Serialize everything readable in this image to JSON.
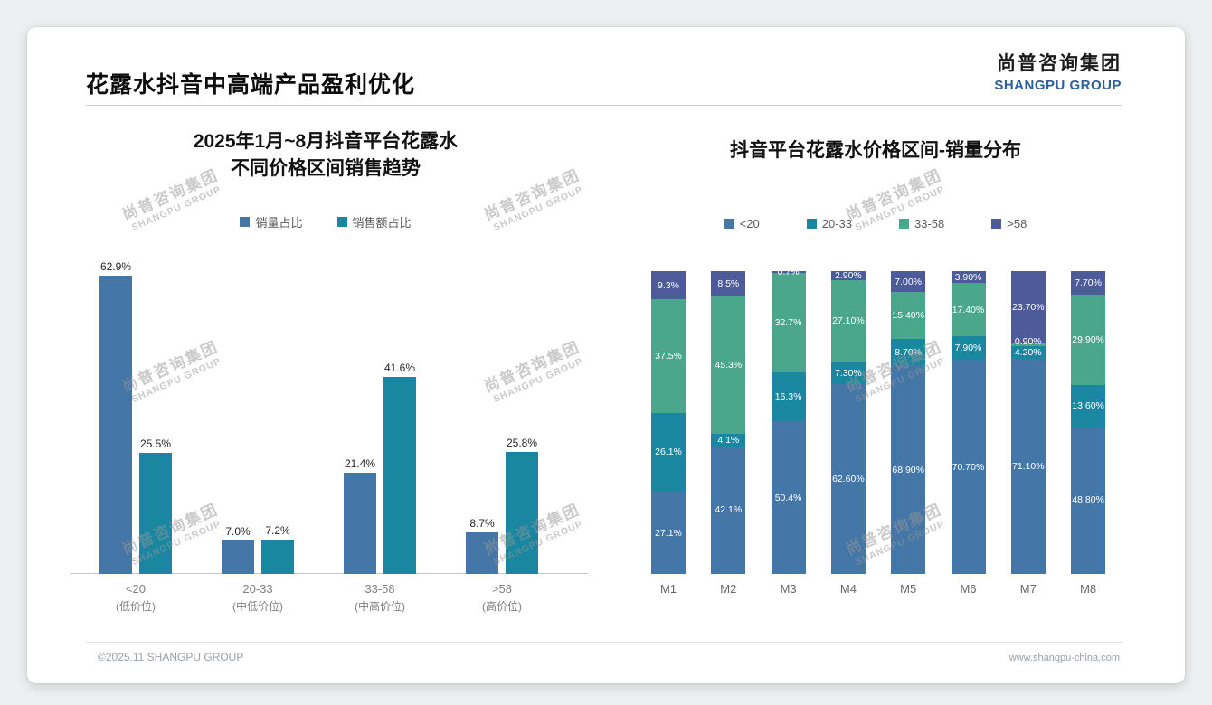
{
  "page": {
    "title": "花露水抖音中高端产品盈利优化",
    "logo": {
      "cn": "尚普咨询集团",
      "en": "SHANGPU GROUP"
    },
    "footer": {
      "left": "©2025.11 SHANGPU GROUP",
      "right": "www.shangpu-china.com"
    },
    "watermark": {
      "cn": "尚普咨询集团",
      "en": "SHANGPU GROUP"
    }
  },
  "colors": {
    "blue": "#4576a8",
    "teal": "#1a87a0",
    "green": "#4ba78c",
    "purple": "#4d5b9b"
  },
  "chart_data": [
    {
      "type": "bar",
      "title": "2025年1月~8月抖音平台花露水不同价格区间销售趋势",
      "title_lines": [
        "2025年1月~8月抖音平台花露水",
        "不同价格区间销售趋势"
      ],
      "categories": [
        "<20",
        "20-33",
        "33-58",
        ">58"
      ],
      "category_sublabels": [
        "(低价位)",
        "(中低价位)",
        "(中高价位)",
        "(高价位)"
      ],
      "series": [
        {
          "name": "销量占比",
          "color_key": "blue",
          "values": [
            62.9,
            7.0,
            21.4,
            8.7
          ],
          "labels": [
            "62.9%",
            "7.0%",
            "21.4%",
            "8.7%"
          ]
        },
        {
          "name": "销售额占比",
          "color_key": "teal",
          "values": [
            25.5,
            7.2,
            41.6,
            25.8
          ],
          "labels": [
            "25.5%",
            "7.2%",
            "41.6%",
            "25.8%"
          ]
        }
      ],
      "ylabel": "",
      "xlabel": "",
      "ylim": [
        0,
        70
      ],
      "grid": false,
      "legend_position": "top"
    },
    {
      "type": "bar",
      "subtype": "stacked-100",
      "title": "抖音平台花露水价格区间-销量分布",
      "categories": [
        "M1",
        "M2",
        "M3",
        "M4",
        "M5",
        "M6",
        "M7",
        "M8"
      ],
      "series": [
        {
          "name": "<20",
          "color_key": "blue",
          "values": [
            27.1,
            42.1,
            50.4,
            62.6,
            68.9,
            70.7,
            71.1,
            48.8
          ],
          "labels": [
            "27.1%",
            "42.1%",
            "50.4%",
            "62.60%",
            "68.90%",
            "70.70%",
            "71.10%",
            "48.80%"
          ]
        },
        {
          "name": "20-33",
          "color_key": "teal",
          "values": [
            26.1,
            4.1,
            16.3,
            7.3,
            8.7,
            7.9,
            4.2,
            13.6
          ],
          "labels": [
            "26.1%",
            "4.1%",
            "16.3%",
            "7.30%",
            "8.70%",
            "7.90%",
            "4.20%",
            "13.60%"
          ]
        },
        {
          "name": "33-58",
          "color_key": "green",
          "values": [
            37.5,
            45.3,
            32.7,
            27.1,
            15.4,
            17.4,
            0.9,
            29.9
          ],
          "labels": [
            "37.5%",
            "45.3%",
            "32.7%",
            "27.10%",
            "15.40%",
            "17.40%",
            "0.90%",
            "29.90%"
          ]
        },
        {
          "name": ">58",
          "color_key": "purple",
          "values": [
            9.3,
            8.5,
            0.7,
            2.9,
            7.0,
            3.9,
            23.7,
            7.7
          ],
          "labels": [
            "9.3%",
            "8.5%",
            "0.7%",
            "2.90%",
            "7.00%",
            "3.90%",
            "23.70%",
            "7.70%"
          ]
        }
      ],
      "ylabel": "",
      "xlabel": "",
      "ylim": [
        0,
        100
      ],
      "grid": false,
      "legend_position": "top"
    }
  ]
}
